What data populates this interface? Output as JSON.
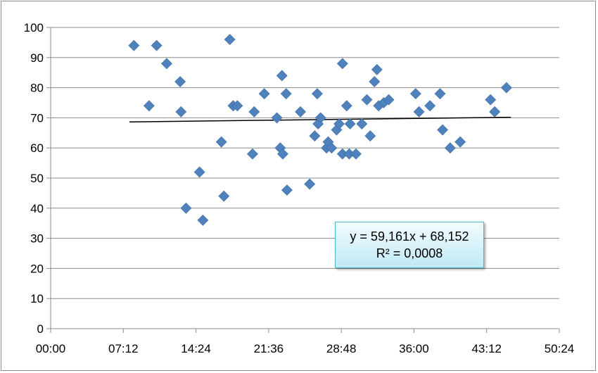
{
  "chart_data": {
    "type": "scatter",
    "title": "",
    "xlabel": "",
    "ylabel": "",
    "xlim": [
      "00:00",
      "50:24"
    ],
    "ylim": [
      0,
      100
    ],
    "x_ticks": [
      "00:00",
      "07:12",
      "14:24",
      "21:36",
      "28:48",
      "36:00",
      "43:12",
      "50:24"
    ],
    "y_ticks": [
      "0",
      "10",
      "20",
      "30",
      "40",
      "50",
      "60",
      "70",
      "80",
      "90",
      "100"
    ],
    "grid": "horizontal",
    "legend": "none",
    "marker_color": "#4f81bd",
    "trendline": {
      "type": "linear",
      "x_range": [
        "07:48",
        "45:36"
      ],
      "equation": "y = 59,161x + 68,152",
      "r_squared": "R² = 0,0008",
      "color": "#000000"
    },
    "points": [
      {
        "x": "08:15",
        "y": 94
      },
      {
        "x": "09:45",
        "y": 74
      },
      {
        "x": "10:30",
        "y": 94
      },
      {
        "x": "11:30",
        "y": 88
      },
      {
        "x": "12:50",
        "y": 82
      },
      {
        "x": "12:55",
        "y": 72
      },
      {
        "x": "13:25",
        "y": 40
      },
      {
        "x": "14:45",
        "y": 52
      },
      {
        "x": "15:05",
        "y": 36
      },
      {
        "x": "16:55",
        "y": 62
      },
      {
        "x": "17:10",
        "y": 44
      },
      {
        "x": "17:45",
        "y": 96
      },
      {
        "x": "18:05",
        "y": 74
      },
      {
        "x": "18:30",
        "y": 74
      },
      {
        "x": "20:00",
        "y": 58
      },
      {
        "x": "20:10",
        "y": 72
      },
      {
        "x": "21:10",
        "y": 78
      },
      {
        "x": "22:25",
        "y": 70
      },
      {
        "x": "22:45",
        "y": 60
      },
      {
        "x": "22:55",
        "y": 84
      },
      {
        "x": "23:00",
        "y": 58
      },
      {
        "x": "23:20",
        "y": 78
      },
      {
        "x": "23:25",
        "y": 46
      },
      {
        "x": "24:45",
        "y": 72
      },
      {
        "x": "25:40",
        "y": 48
      },
      {
        "x": "26:10",
        "y": 64
      },
      {
        "x": "26:25",
        "y": 78
      },
      {
        "x": "26:30",
        "y": 68
      },
      {
        "x": "26:45",
        "y": 70
      },
      {
        "x": "27:20",
        "y": 60
      },
      {
        "x": "27:30",
        "y": 62
      },
      {
        "x": "27:50",
        "y": 60
      },
      {
        "x": "28:20",
        "y": 66
      },
      {
        "x": "28:35",
        "y": 68
      },
      {
        "x": "28:55",
        "y": 58
      },
      {
        "x": "28:55",
        "y": 88
      },
      {
        "x": "29:20",
        "y": 74
      },
      {
        "x": "29:35",
        "y": 58
      },
      {
        "x": "29:40",
        "y": 68
      },
      {
        "x": "30:15",
        "y": 58
      },
      {
        "x": "30:50",
        "y": 68
      },
      {
        "x": "31:20",
        "y": 76
      },
      {
        "x": "31:40",
        "y": 64
      },
      {
        "x": "32:05",
        "y": 82
      },
      {
        "x": "32:20",
        "y": 86
      },
      {
        "x": "32:30",
        "y": 74
      },
      {
        "x": "33:00",
        "y": 75
      },
      {
        "x": "33:30",
        "y": 76
      },
      {
        "x": "36:10",
        "y": 78
      },
      {
        "x": "36:30",
        "y": 72
      },
      {
        "x": "37:35",
        "y": 74
      },
      {
        "x": "38:35",
        "y": 78
      },
      {
        "x": "38:50",
        "y": 66
      },
      {
        "x": "39:35",
        "y": 60
      },
      {
        "x": "40:35",
        "y": 62
      },
      {
        "x": "43:35",
        "y": 76
      },
      {
        "x": "44:00",
        "y": 72
      },
      {
        "x": "45:10",
        "y": 80
      }
    ]
  }
}
